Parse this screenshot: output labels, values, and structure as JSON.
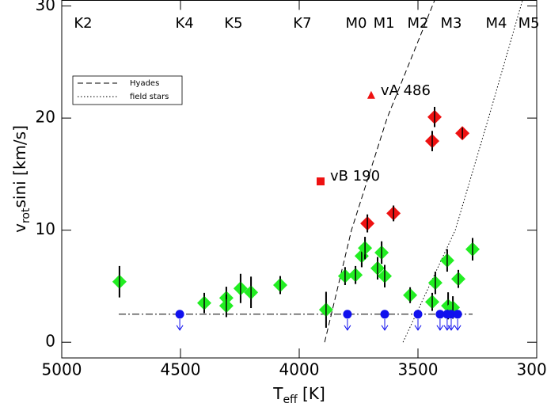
{
  "chart_data": {
    "type": "scatter",
    "xlabel": [
      "T",
      "eff",
      " [K]"
    ],
    "ylabel": [
      "v",
      "rot",
      "sini [km/s]"
    ],
    "xlim": [
      5000,
      3000
    ],
    "xticks": [
      5000,
      4500,
      4000,
      3500,
      3000
    ],
    "ylim": [
      -1.4,
      30.5
    ],
    "yticks": [
      0,
      10,
      20,
      30
    ],
    "legend": "upper left",
    "spectral_types": [
      {
        "label": "K2",
        "x": 4910
      },
      {
        "label": "K4",
        "x": 4483
      },
      {
        "label": "K5",
        "x": 4277
      },
      {
        "label": "K7",
        "x": 3987
      },
      {
        "label": "M0",
        "x": 3760
      },
      {
        "label": "M1",
        "x": 3643
      },
      {
        "label": "M2",
        "x": 3500
      },
      {
        "label": "M3",
        "x": 3360
      },
      {
        "label": "M4",
        "x": 3170
      },
      {
        "label": "M5",
        "x": 3033
      }
    ],
    "series": [
      {
        "marker": "line",
        "color": "#000000",
        "dash": "9,3,2,3",
        "x": [
          4760,
          3270
        ],
        "values": [
          2.5,
          2.5
        ]
      },
      {
        "name": "Hyades",
        "marker": "line",
        "color": "#000000",
        "dash": "7,4",
        "x": [
          3893,
          3780,
          3630,
          3430
        ],
        "values": [
          0,
          10,
          20,
          30.5
        ]
      },
      {
        "name": "field stars",
        "marker": "line",
        "color": "#000000",
        "dash": "1.5,2.5",
        "x": [
          3563,
          3343,
          3203,
          3060
        ],
        "values": [
          0,
          10,
          20,
          30.5
        ]
      },
      {
        "marker": "diamond",
        "color": "#22ee22",
        "x": [
          4757,
          4400,
          4307,
          4307,
          4247,
          4203,
          4080,
          3887,
          3807,
          3763,
          3737,
          3723,
          3670,
          3653,
          3640,
          3533,
          3440,
          3427,
          3377,
          3373,
          3353,
          3330,
          3270
        ],
        "values": [
          5.4,
          3.5,
          3.95,
          3.25,
          4.8,
          4.45,
          5.1,
          2.9,
          5.9,
          6.0,
          7.7,
          8.4,
          6.6,
          8.0,
          5.9,
          4.2,
          3.6,
          5.3,
          7.3,
          3.25,
          3.1,
          5.65,
          8.3
        ],
        "errors": [
          1.4,
          0.9,
          1.0,
          1.0,
          1.3,
          1.4,
          0.8,
          1.6,
          0.8,
          0.8,
          1.0,
          1.0,
          1.0,
          1.0,
          1.0,
          0.7,
          0.8,
          1.0,
          1.0,
          1.2,
          1.0,
          0.8,
          1.0
        ]
      },
      {
        "marker": "diamond",
        "color": "#ee1111",
        "x": [
          3713,
          3603,
          3440,
          3430,
          3313
        ],
        "values": [
          10.6,
          11.5,
          17.95,
          20.1,
          18.65
        ],
        "errors": [
          0.8,
          0.7,
          0.9,
          0.9,
          0.5
        ]
      },
      {
        "marker": "circle",
        "color": "#1111ee",
        "upper_limit": true,
        "x": [
          4503,
          3797,
          3640,
          3500,
          3407,
          3377,
          3360,
          3333
        ],
        "values": [
          2.5,
          2.5,
          2.5,
          2.5,
          2.5,
          2.5,
          2.5,
          2.5
        ]
      },
      {
        "name": "vA 486",
        "marker": "triangle",
        "color": "#ee1111",
        "x": [
          3697
        ],
        "values": [
          22.0
        ]
      },
      {
        "name": "vB 190",
        "marker": "square",
        "color": "#ee1111",
        "x": [
          3910
        ],
        "values": [
          14.35
        ]
      }
    ]
  }
}
